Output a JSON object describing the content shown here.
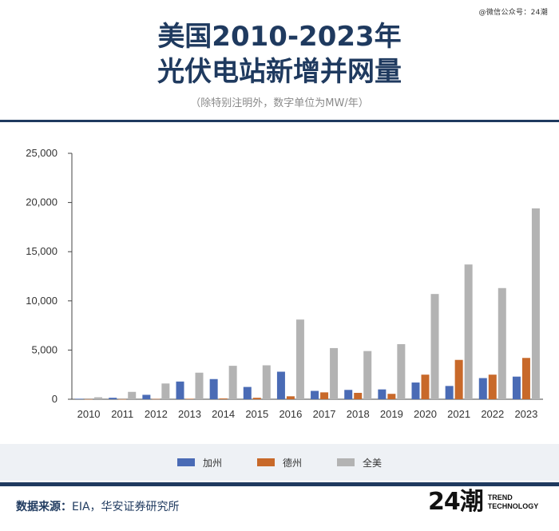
{
  "watermark": "@微信公众号：24潮",
  "header": {
    "title_line1": "美国2010-2023年",
    "title_line2": "光伏电站新增并网量",
    "subtitle": "（除特别注明外，数字单位为MW/年）"
  },
  "footer": {
    "source_label": "数据来源：",
    "source_text": "EIA，华安证券研究所",
    "logo_mark": "24潮",
    "logo_line1": "TREND",
    "logo_line2": "TECHNOLOGY"
  },
  "colors": {
    "title": "#1f3a5f",
    "california": "#4a6bb5",
    "texas": "#c8692a",
    "us_total": "#b3b3b3"
  },
  "chart_data": {
    "type": "bar",
    "categories": [
      "2010",
      "2011",
      "2012",
      "2013",
      "2014",
      "2015",
      "2016",
      "2017",
      "2018",
      "2019",
      "2020",
      "2021",
      "2022",
      "2023"
    ],
    "series": [
      {
        "name": "加州",
        "color": "#4a6bb5",
        "values": [
          50,
          150,
          450,
          1800,
          2050,
          1250,
          2800,
          850,
          950,
          1000,
          1700,
          1350,
          2150,
          2300
        ]
      },
      {
        "name": "德州",
        "color": "#c8692a",
        "values": [
          10,
          10,
          30,
          50,
          80,
          150,
          300,
          700,
          650,
          550,
          2500,
          4000,
          2500,
          4200
        ]
      },
      {
        "name": "全美",
        "color": "#b3b3b3",
        "values": [
          200,
          750,
          1600,
          2700,
          3400,
          3450,
          8100,
          5200,
          4900,
          5600,
          10700,
          13700,
          11300,
          19400
        ]
      }
    ],
    "ylim": [
      0,
      25000
    ],
    "yticks": [
      "0",
      "5,000",
      "10,000",
      "15,000",
      "20,000",
      "25,000"
    ],
    "grid": false,
    "legend_position": "bottom"
  }
}
